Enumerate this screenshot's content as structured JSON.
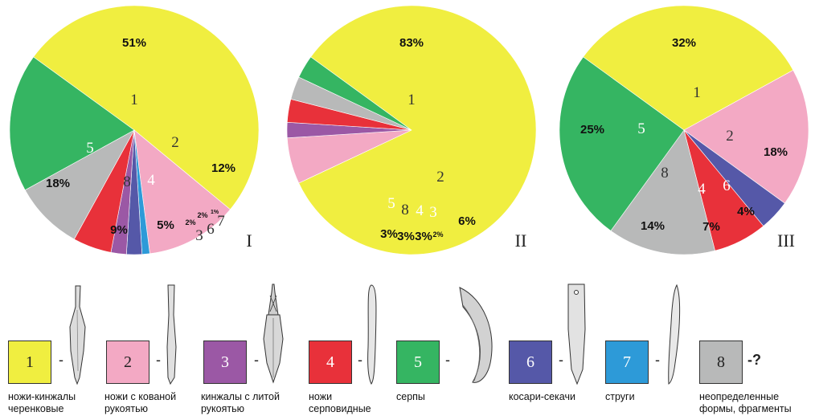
{
  "chart_data": [
    {
      "type": "pie",
      "panel": "I",
      "slices": [
        {
          "category": "1",
          "value": 51,
          "label": "51%"
        },
        {
          "category": "2",
          "value": 12,
          "label": "12%"
        },
        {
          "category": "7",
          "value": 1,
          "label": "1%"
        },
        {
          "category": "6",
          "value": 2,
          "label": "2%"
        },
        {
          "category": "3",
          "value": 2,
          "label": "2%"
        },
        {
          "category": "4",
          "value": 5,
          "label": "5%"
        },
        {
          "category": "8",
          "value": 9,
          "label": "9%"
        },
        {
          "category": "5",
          "value": 18,
          "label": "18%"
        }
      ]
    },
    {
      "type": "pie",
      "panel": "II",
      "slices": [
        {
          "category": "1",
          "value": 83,
          "label": "83%"
        },
        {
          "category": "2",
          "value": 6,
          "label": "6%"
        },
        {
          "category": "3",
          "value": 2,
          "label": "2%"
        },
        {
          "category": "4",
          "value": 3,
          "label": "3%"
        },
        {
          "category": "8",
          "value": 3,
          "label": "3%"
        },
        {
          "category": "5",
          "value": 3,
          "label": "3%"
        }
      ]
    },
    {
      "type": "pie",
      "panel": "III",
      "slices": [
        {
          "category": "1",
          "value": 32,
          "label": "32%"
        },
        {
          "category": "2",
          "value": 18,
          "label": "18%"
        },
        {
          "category": "6",
          "value": 4,
          "label": "4%"
        },
        {
          "category": "4",
          "value": 7,
          "label": "7%"
        },
        {
          "category": "8",
          "value": 14,
          "label": "14%"
        },
        {
          "category": "5",
          "value": 25,
          "label": "25%"
        }
      ]
    }
  ],
  "categories": {
    "1": {
      "color": "#f0ee40",
      "label": "ножи-кинжалы\nчеренковые"
    },
    "2": {
      "color": "#f3a9c4",
      "label": "ножи с кованой\nрукоятью"
    },
    "3": {
      "color": "#9b58a5",
      "label": "кинжалы с литой\nрукоятью"
    },
    "4": {
      "color": "#e8313a",
      "label": "ножи\nсерповидные"
    },
    "5": {
      "color": "#35b562",
      "label": "серпы"
    },
    "6": {
      "color": "#5558a8",
      "label": "косари-секачи"
    },
    "7": {
      "color": "#2d9ad8",
      "label": "струги"
    },
    "8": {
      "color": "#b8b9b9",
      "label": "неопределенные\nформы, фрагменты"
    }
  },
  "legend_order": [
    "1",
    "2",
    "3",
    "4",
    "5",
    "6",
    "7",
    "8"
  ],
  "unknown_marker": "-?"
}
